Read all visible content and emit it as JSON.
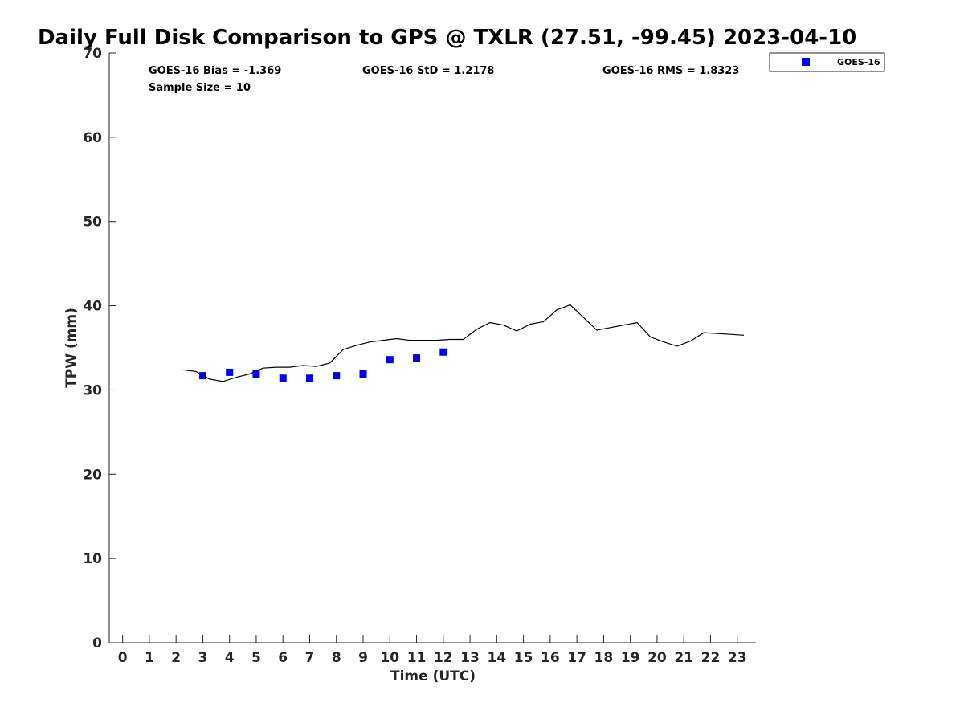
{
  "chart_data": {
    "type": "scatter",
    "title": "Daily Full Disk Comparison to GPS @ TXLR (27.51, -99.45) 2023-04-10",
    "xlabel": "Time (UTC)",
    "ylabel": "TPW (mm)",
    "xlim": [
      -0.5,
      23.7
    ],
    "ylim": [
      0,
      70
    ],
    "xticks": [
      0,
      1,
      2,
      3,
      4,
      5,
      6,
      7,
      8,
      9,
      10,
      11,
      12,
      13,
      14,
      15,
      16,
      17,
      18,
      19,
      20,
      21,
      22,
      23
    ],
    "yticks": [
      0,
      10,
      20,
      30,
      40,
      50,
      60,
      70
    ],
    "grid": false,
    "legend": {
      "position": "top-right",
      "entries": [
        "GOES-16"
      ]
    },
    "stats": {
      "bias": "GOES-16 Bias = -1.369",
      "std": "GOES-16 StD = 1.2178",
      "rms": "GOES-16 RMS = 1.8323",
      "sample": "Sample Size = 10"
    },
    "series": [
      {
        "name": "GOES-16",
        "kind": "scatter",
        "color": "#0000ee",
        "x": [
          3,
          4,
          5,
          6,
          7,
          8,
          9,
          10,
          11,
          12
        ],
        "y": [
          31.7,
          32.1,
          31.9,
          31.4,
          31.4,
          31.7,
          31.9,
          33.6,
          33.8,
          34.5
        ]
      },
      {
        "kind": "line",
        "color": "#000000",
        "x": [
          2.25,
          2.75,
          3.25,
          3.75,
          4.25,
          4.75,
          5.25,
          5.75,
          6.25,
          6.75,
          7.25,
          7.75,
          8.25,
          8.75,
          9.25,
          9.75,
          10.25,
          10.75,
          11.25,
          11.75,
          12.25,
          12.75,
          13.25,
          13.75,
          14.25,
          14.75,
          15.25,
          15.75,
          16.25,
          16.75,
          17.25,
          17.75,
          18.25,
          18.75,
          19.25,
          19.75,
          20.25,
          20.75,
          21.25,
          21.75,
          22.25,
          22.75,
          23.25
        ],
        "y": [
          32.4,
          32.2,
          31.3,
          31.0,
          31.5,
          31.9,
          32.6,
          32.7,
          32.7,
          32.9,
          32.8,
          33.2,
          34.8,
          35.3,
          35.7,
          35.9,
          36.1,
          35.9,
          35.9,
          35.9,
          36.0,
          36.0,
          37.2,
          38.0,
          37.7,
          37.0,
          37.8,
          38.1,
          39.5,
          40.1,
          38.6,
          37.1,
          37.4,
          37.7,
          38.0,
          36.3,
          35.7,
          35.2,
          35.8,
          36.8,
          36.7,
          36.6,
          36.5
        ]
      }
    ]
  }
}
